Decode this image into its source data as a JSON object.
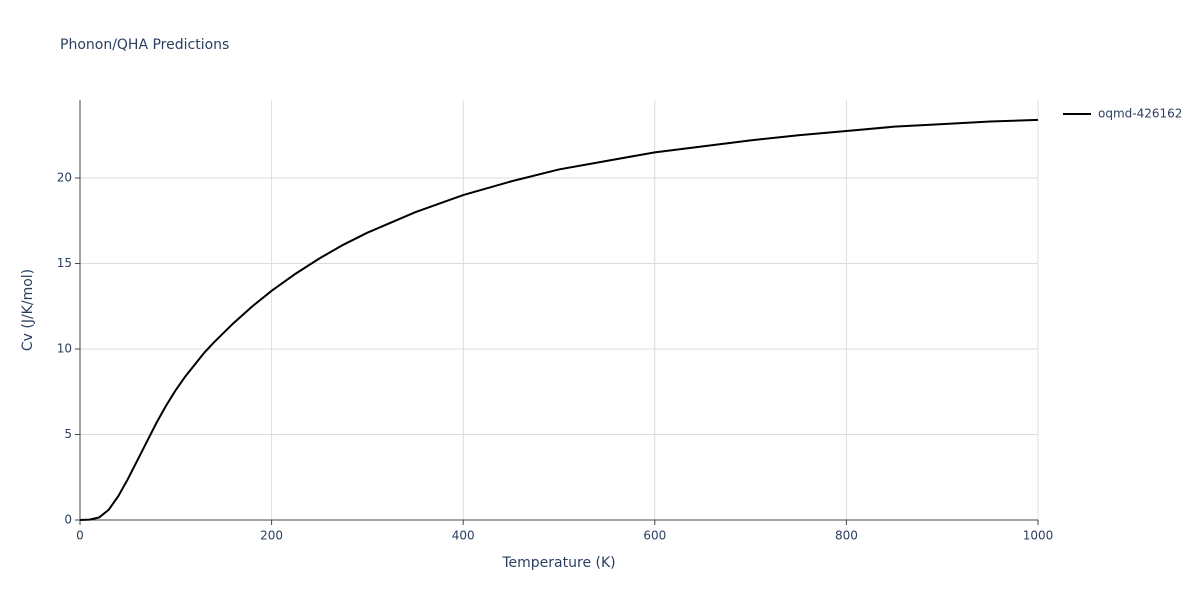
{
  "chart_data": {
    "type": "line",
    "title": "Phonon/QHA Predictions",
    "x_label": "Temperature (K)",
    "y_label": "Cv (J/K/mol)",
    "x": [
      0,
      10,
      20,
      30,
      40,
      50,
      60,
      70,
      80,
      90,
      100,
      110,
      120,
      130,
      140,
      160,
      180,
      200,
      225,
      250,
      275,
      300,
      350,
      400,
      450,
      500,
      550,
      600,
      650,
      700,
      750,
      800,
      850,
      900,
      950,
      1000
    ],
    "series": [
      {
        "name": "oqmd-426162",
        "color": "#000000",
        "values": [
          0,
          0.02,
          0.15,
          0.6,
          1.4,
          2.4,
          3.5,
          4.6,
          5.7,
          6.7,
          7.6,
          8.4,
          9.1,
          9.8,
          10.4,
          11.5,
          12.5,
          13.4,
          14.4,
          15.3,
          16.1,
          16.8,
          18.0,
          19.0,
          19.8,
          20.5,
          21.0,
          21.5,
          21.85,
          22.2,
          22.5,
          22.75,
          23.0,
          23.15,
          23.3,
          23.4
        ]
      }
    ],
    "xlim": [
      0,
      1000
    ],
    "xticks": [
      0,
      200,
      400,
      600,
      800,
      1000
    ],
    "ylim": [
      0,
      24.56
    ],
    "yticks": [
      0,
      5,
      10,
      15,
      20
    ],
    "grid": true,
    "legend": "right"
  }
}
